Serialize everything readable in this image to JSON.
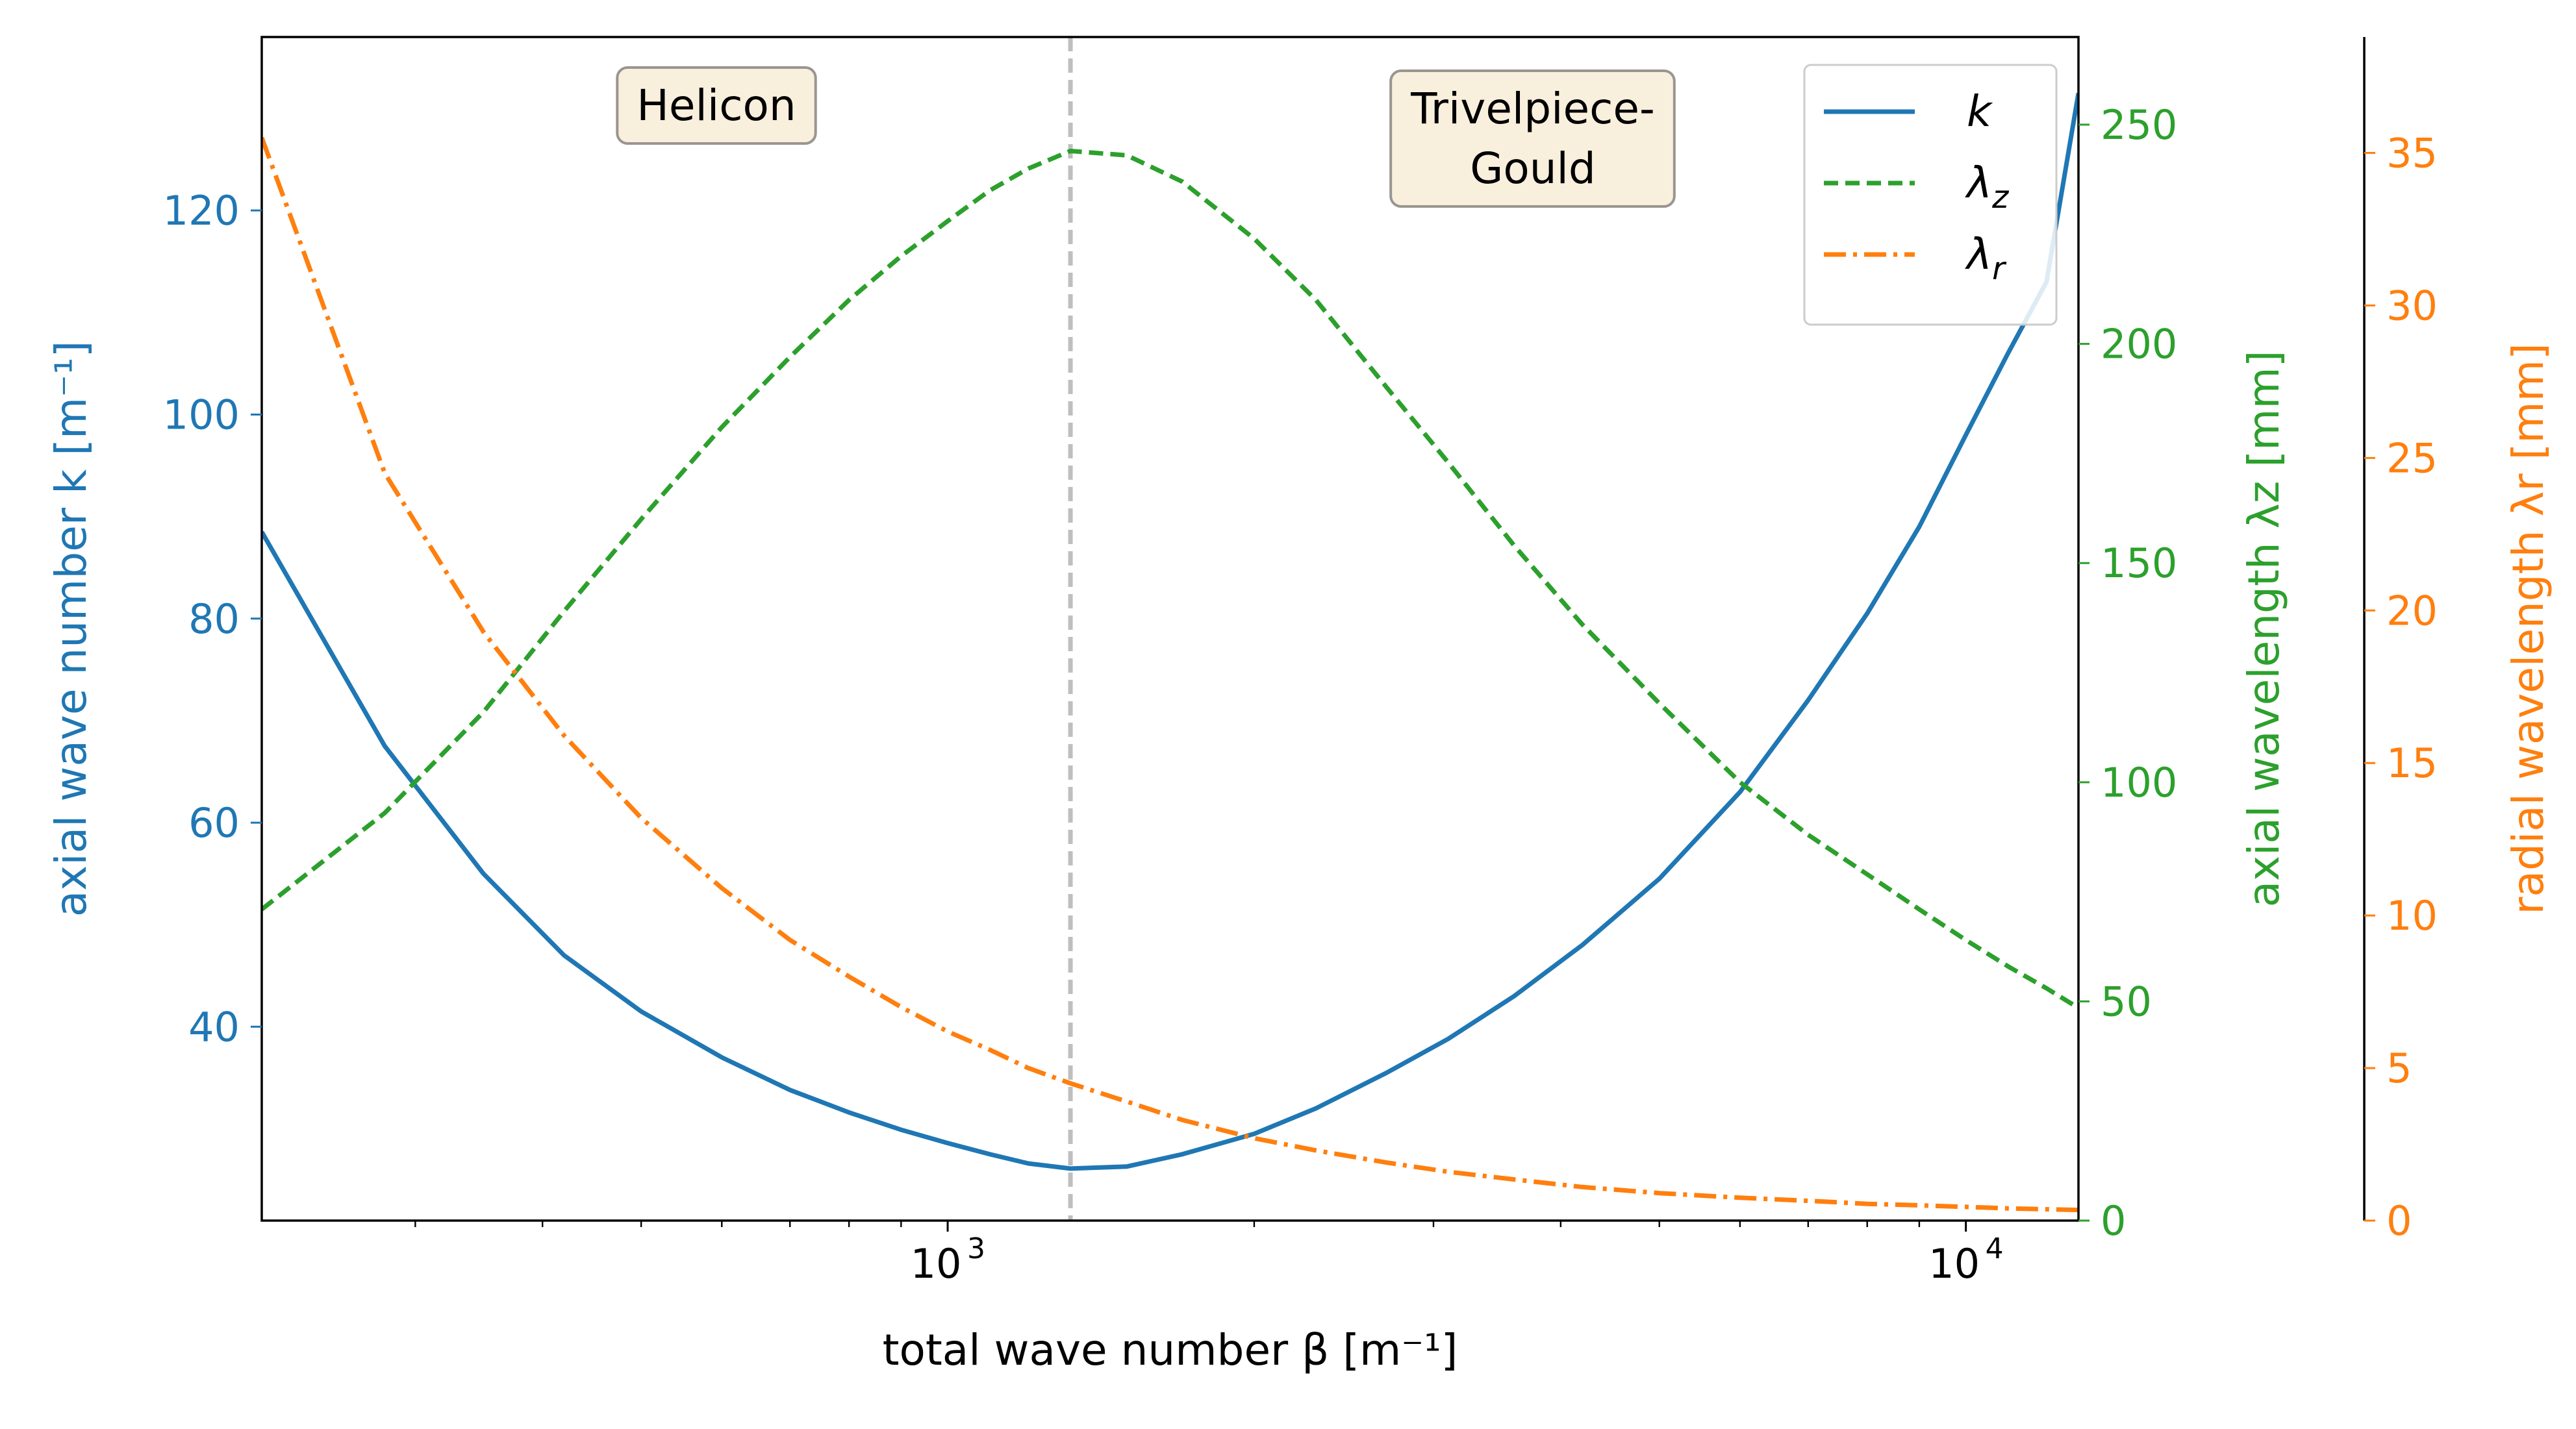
{
  "chart_data": {
    "type": "line",
    "xlabel": "total wave number β [m⁻¹]",
    "x_scale": "log",
    "xlim": [
      212,
      12900
    ],
    "x_major_ticks": [
      1000,
      10000
    ],
    "x_tick_labels": [
      {
        "base": "10",
        "exp": "3"
      },
      {
        "base": "10",
        "exp": "4"
      }
    ],
    "axes": [
      {
        "id": "k",
        "side": "left",
        "label": "axial wave number k [m⁻¹]",
        "color": "#1f77b4",
        "ylim": [
          21,
          137
        ],
        "ticks": [
          40,
          60,
          80,
          100,
          120
        ],
        "tick_labels": [
          "40",
          "60",
          "80",
          "100",
          "120"
        ]
      },
      {
        "id": "lz",
        "side": "right",
        "label": "axial wavelength λz [mm]",
        "color": "#2ca02c",
        "ylim": [
          0,
          270
        ],
        "ticks": [
          0,
          50,
          100,
          150,
          200,
          250
        ],
        "tick_labels": [
          "0",
          "50",
          "100",
          "150",
          "200",
          "250"
        ]
      },
      {
        "id": "lr",
        "side": "right-outer",
        "label": "radial wavelength λr [mm]",
        "color": "#ff7f0e",
        "ylim": [
          0,
          38.8
        ],
        "ticks": [
          0,
          5,
          10,
          15,
          20,
          25,
          30,
          35
        ],
        "tick_labels": [
          "0",
          "5",
          "10",
          "15",
          "20",
          "25",
          "30",
          "35"
        ]
      }
    ],
    "series": [
      {
        "name": "k",
        "axis": "k",
        "color": "#1f77b4",
        "dash": "solid",
        "x": [
          212,
          280,
          350,
          420,
          500,
          600,
          700,
          800,
          900,
          1000,
          1100,
          1200,
          1320,
          1500,
          1700,
          2000,
          2300,
          2700,
          3100,
          3600,
          4200,
          5000,
          6000,
          7000,
          8000,
          9000,
          10000,
          11000,
          12000,
          12900
        ],
        "y": [
          88.5,
          67.5,
          55,
          47,
          41.5,
          37,
          33.8,
          31.6,
          29.9,
          28.6,
          27.5,
          26.6,
          26.1,
          26.3,
          27.5,
          29.5,
          32,
          35.5,
          38.8,
          43,
          48,
          54.5,
          63,
          72,
          80.5,
          89,
          98,
          106,
          113,
          131.5
        ]
      },
      {
        "name": "λz",
        "axis": "lz",
        "color": "#2ca02c",
        "dash": "dashed",
        "x": [
          212,
          280,
          350,
          420,
          500,
          600,
          700,
          800,
          900,
          1000,
          1100,
          1200,
          1320,
          1500,
          1700,
          2000,
          2300,
          2700,
          3100,
          3600,
          4200,
          5000,
          6000,
          7000,
          8000,
          9000,
          10000,
          11000,
          12000,
          12900
        ],
        "y": [
          71,
          93,
          116,
          139,
          160,
          181,
          197,
          210,
          220,
          228,
          235,
          240,
          244,
          243,
          237,
          224,
          210,
          190,
          173,
          154,
          136,
          118,
          100,
          88,
          79,
          71,
          64,
          58,
          53,
          48.5
        ]
      },
      {
        "name": "λr",
        "axis": "lr",
        "color": "#ff7f0e",
        "dash": "dashdot",
        "x": [
          212,
          280,
          350,
          420,
          500,
          600,
          700,
          800,
          900,
          1000,
          1100,
          1200,
          1320,
          1500,
          1700,
          2000,
          2300,
          2700,
          3100,
          3600,
          4200,
          5000,
          6000,
          7000,
          8000,
          9000,
          10000,
          11000,
          12000,
          12900
        ],
        "y": [
          35.5,
          24.5,
          19.3,
          15.9,
          13.2,
          10.9,
          9.2,
          8.0,
          7.0,
          6.2,
          5.6,
          5.0,
          4.5,
          3.9,
          3.3,
          2.7,
          2.3,
          1.9,
          1.6,
          1.35,
          1.1,
          0.9,
          0.75,
          0.65,
          0.55,
          0.5,
          0.45,
          0.4,
          0.37,
          0.35
        ]
      }
    ],
    "reference_line": {
      "x": 1320,
      "color": "#bfbfbf",
      "style": "dashed"
    },
    "annotations": [
      {
        "text": "Helicon",
        "region": "left"
      },
      {
        "text": "Trivelpiece-\nGould",
        "region": "right"
      }
    ],
    "legend": {
      "placement": "top-right",
      "entries": [
        "k",
        "λz",
        "λr"
      ]
    },
    "grid": false
  }
}
